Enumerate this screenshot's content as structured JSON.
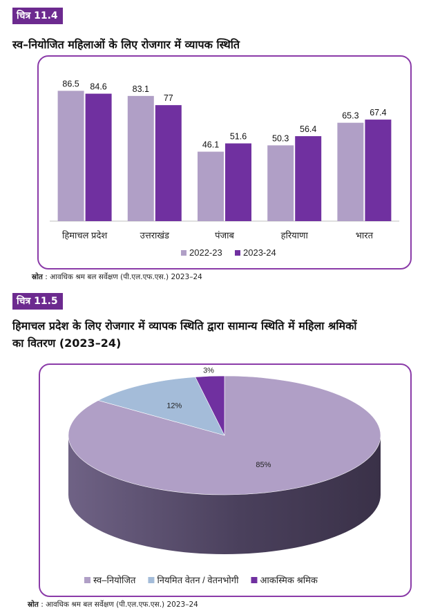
{
  "figure1": {
    "tag": "चित्र 11.4",
    "title": "स्व–नियोजित महिलाओं के लिए रोजगार में व्यापक स्थिति",
    "source_label": "स्रोत",
    "source_text": ": आवधिक श्रम बल सर्वेक्षण (पी.एल.एफ.एस.) 2023–24"
  },
  "figure2": {
    "tag": "चित्र 11.5",
    "title_line1": "हिमाचल प्रदेश के लिए रोजगार में व्यापक स्थिति द्वारा सामान्य स्थिति में महिला श्रमिकों",
    "title_line2": "का वितरण (2023–24)",
    "source_label": "स्रोत",
    "source_text": ": आवधिक श्रम बल सर्वेक्षण (पी.एल.एफ.एस.) 2023–24"
  },
  "chart_data": [
    {
      "type": "bar",
      "categories": [
        "हिमाचल प्रदेश",
        "उत्तराखंड",
        "पंजाब",
        "हरियाणा",
        "भारत"
      ],
      "series": [
        {
          "name": "2022-23",
          "values": [
            86.5,
            83.1,
            46.1,
            50.3,
            65.3
          ],
          "color": "#b09fc6"
        },
        {
          "name": "2023-24",
          "values": [
            84.6,
            77,
            51.6,
            56.4,
            67.4
          ],
          "color": "#7030a0"
        }
      ],
      "ylim": [
        0,
        100
      ],
      "grid": false,
      "legend": "bottom",
      "data_labels": true
    },
    {
      "type": "pie",
      "style": "3d",
      "slices": [
        {
          "label": "स्व–नियोजित",
          "value": 85,
          "display": "85%",
          "color": "#b09fc6"
        },
        {
          "label": "नियमित वेतन / वेतनभोगी",
          "value": 12,
          "display": "12%",
          "color": "#a4bcd9"
        },
        {
          "label": "आकस्मिक श्रमिक",
          "value": 3,
          "display": "3%",
          "color": "#7030a0"
        }
      ],
      "legend": "bottom"
    }
  ]
}
